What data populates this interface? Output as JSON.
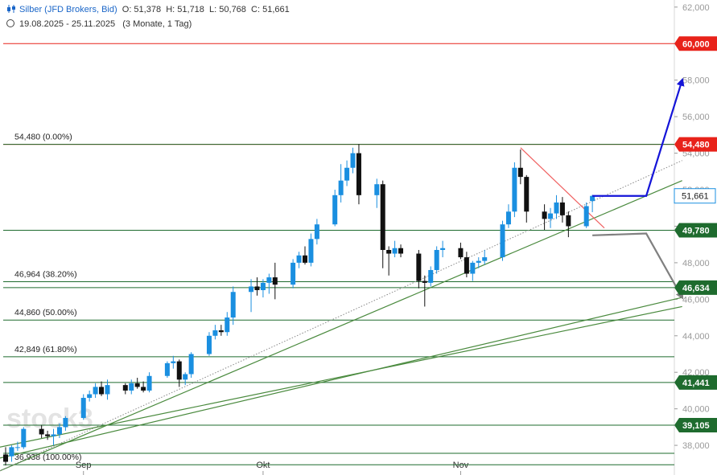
{
  "header": {
    "title": "Silber (JFD Brokers, Bid)",
    "open": "O: 51,378",
    "high": "H: 51,718",
    "low": "L: 50,768",
    "close": "C: 51,661",
    "range": "19.08.2025 - 25.11.2025",
    "interval": "(3 Monate, 1 Tag)"
  },
  "watermark": "stock3",
  "chart_data": {
    "type": "candlestick",
    "title": "Silber (JFD Brokers, Bid)",
    "y_ticks": [
      38,
      40,
      42,
      44,
      46,
      48,
      50,
      52,
      54,
      56,
      58,
      60,
      62
    ],
    "y_tick_labels": [
      "38,000",
      "40,000",
      "42,000",
      "44,000",
      "46,000",
      "48,000",
      "50,000",
      "52,000",
      "54,000",
      "56,000",
      "58,000",
      "60,000",
      "62,000"
    ],
    "ylim": [
      36.2,
      62.3
    ],
    "x_labels": [
      {
        "label": "Sep",
        "date": "2025-09-01"
      },
      {
        "label": "Okt",
        "date": "2025-10-01"
      },
      {
        "label": "Nov",
        "date": "2025-11-03"
      }
    ],
    "candles": [
      {
        "date": "2025-08-19",
        "o": 37.5,
        "h": 37.9,
        "l": 36.9,
        "c": 37.1
      },
      {
        "date": "2025-08-20",
        "o": 37.4,
        "h": 38.0,
        "l": 37.1,
        "c": 37.9
      },
      {
        "date": "2025-08-21",
        "o": 37.9,
        "h": 38.2,
        "l": 37.7,
        "c": 37.9
      },
      {
        "date": "2025-08-22",
        "o": 37.9,
        "h": 39.0,
        "l": 37.8,
        "c": 38.9
      },
      {
        "date": "2025-08-25",
        "o": 38.9,
        "h": 39.1,
        "l": 38.4,
        "c": 38.6
      },
      {
        "date": "2025-08-26",
        "o": 38.6,
        "h": 38.8,
        "l": 38.3,
        "c": 38.5
      },
      {
        "date": "2025-08-27",
        "o": 38.5,
        "h": 38.9,
        "l": 38.0,
        "c": 38.6
      },
      {
        "date": "2025-08-28",
        "o": 38.6,
        "h": 39.2,
        "l": 38.4,
        "c": 39.0
      },
      {
        "date": "2025-08-29",
        "o": 39.0,
        "h": 39.6,
        "l": 38.8,
        "c": 39.5
      },
      {
        "date": "2025-09-01",
        "o": 39.5,
        "h": 40.8,
        "l": 39.4,
        "c": 40.6
      },
      {
        "date": "2025-09-02",
        "o": 40.6,
        "h": 41.0,
        "l": 40.4,
        "c": 40.8
      },
      {
        "date": "2025-09-03",
        "o": 40.8,
        "h": 41.4,
        "l": 40.6,
        "c": 41.2
      },
      {
        "date": "2025-09-04",
        "o": 41.2,
        "h": 41.5,
        "l": 40.7,
        "c": 40.8
      },
      {
        "date": "2025-09-05",
        "o": 40.8,
        "h": 41.6,
        "l": 40.5,
        "c": 41.3
      },
      {
        "date": "2025-09-08",
        "o": 41.3,
        "h": 41.4,
        "l": 40.8,
        "c": 41.0
      },
      {
        "date": "2025-09-09",
        "o": 41.0,
        "h": 41.6,
        "l": 40.8,
        "c": 41.4
      },
      {
        "date": "2025-09-10",
        "o": 41.4,
        "h": 41.7,
        "l": 41.1,
        "c": 41.2
      },
      {
        "date": "2025-09-11",
        "o": 41.2,
        "h": 41.5,
        "l": 40.9,
        "c": 41.0
      },
      {
        "date": "2025-09-12",
        "o": 41.0,
        "h": 42.0,
        "l": 40.9,
        "c": 41.8
      },
      {
        "date": "2025-09-15",
        "o": 41.8,
        "h": 42.6,
        "l": 41.7,
        "c": 42.5
      },
      {
        "date": "2025-09-16",
        "o": 42.5,
        "h": 42.9,
        "l": 42.2,
        "c": 42.6
      },
      {
        "date": "2025-09-17",
        "o": 42.6,
        "h": 42.7,
        "l": 41.2,
        "c": 41.6
      },
      {
        "date": "2025-09-18",
        "o": 41.6,
        "h": 42.0,
        "l": 41.3,
        "c": 41.9
      },
      {
        "date": "2025-09-19",
        "o": 41.9,
        "h": 43.1,
        "l": 41.7,
        "c": 43.0
      },
      {
        "date": "2025-09-22",
        "o": 43.0,
        "h": 44.2,
        "l": 42.9,
        "c": 44.0
      },
      {
        "date": "2025-09-23",
        "o": 44.0,
        "h": 44.6,
        "l": 43.8,
        "c": 44.3
      },
      {
        "date": "2025-09-24",
        "o": 44.3,
        "h": 44.6,
        "l": 44.0,
        "c": 44.2
      },
      {
        "date": "2025-09-25",
        "o": 44.2,
        "h": 45.3,
        "l": 44.0,
        "c": 45.0
      },
      {
        "date": "2025-09-26",
        "o": 45.0,
        "h": 46.7,
        "l": 44.6,
        "c": 46.4
      },
      {
        "date": "2025-09-29",
        "o": 46.4,
        "h": 47.1,
        "l": 45.3,
        "c": 46.7
      },
      {
        "date": "2025-09-30",
        "o": 46.7,
        "h": 47.2,
        "l": 46.2,
        "c": 46.5
      },
      {
        "date": "2025-10-01",
        "o": 46.5,
        "h": 47.1,
        "l": 46.1,
        "c": 46.9
      },
      {
        "date": "2025-10-02",
        "o": 46.9,
        "h": 47.4,
        "l": 46.3,
        "c": 47.2
      },
      {
        "date": "2025-10-03",
        "o": 47.2,
        "h": 48.0,
        "l": 46.0,
        "c": 46.8
      },
      {
        "date": "2025-10-06",
        "o": 46.8,
        "h": 48.2,
        "l": 46.6,
        "c": 48.0
      },
      {
        "date": "2025-10-07",
        "o": 48.0,
        "h": 48.6,
        "l": 47.7,
        "c": 48.4
      },
      {
        "date": "2025-10-08",
        "o": 48.4,
        "h": 48.9,
        "l": 47.9,
        "c": 48.0
      },
      {
        "date": "2025-10-09",
        "o": 48.0,
        "h": 49.6,
        "l": 47.8,
        "c": 49.3
      },
      {
        "date": "2025-10-10",
        "o": 49.3,
        "h": 50.4,
        "l": 49.0,
        "c": 50.1
      },
      {
        "date": "2025-10-13",
        "o": 50.1,
        "h": 52.0,
        "l": 50.0,
        "c": 51.7
      },
      {
        "date": "2025-10-14",
        "o": 51.7,
        "h": 53.4,
        "l": 51.3,
        "c": 52.5
      },
      {
        "date": "2025-10-15",
        "o": 52.5,
        "h": 53.6,
        "l": 52.2,
        "c": 53.2
      },
      {
        "date": "2025-10-16",
        "o": 53.2,
        "h": 54.3,
        "l": 52.9,
        "c": 54.0
      },
      {
        "date": "2025-10-17",
        "o": 54.0,
        "h": 54.5,
        "l": 51.2,
        "c": 51.7
      },
      {
        "date": "2025-10-20",
        "o": 51.7,
        "h": 52.6,
        "l": 51.0,
        "c": 52.3
      },
      {
        "date": "2025-10-21",
        "o": 52.3,
        "h": 52.5,
        "l": 47.7,
        "c": 48.7
      },
      {
        "date": "2025-10-22",
        "o": 48.7,
        "h": 48.9,
        "l": 47.3,
        "c": 48.5
      },
      {
        "date": "2025-10-23",
        "o": 48.5,
        "h": 49.2,
        "l": 48.3,
        "c": 48.8
      },
      {
        "date": "2025-10-24",
        "o": 48.8,
        "h": 49.0,
        "l": 48.3,
        "c": 48.5
      },
      {
        "date": "2025-10-27",
        "o": 48.5,
        "h": 48.7,
        "l": 46.6,
        "c": 47.0
      },
      {
        "date": "2025-10-28",
        "o": 47.0,
        "h": 47.3,
        "l": 45.6,
        "c": 46.9
      },
      {
        "date": "2025-10-29",
        "o": 46.9,
        "h": 47.8,
        "l": 46.7,
        "c": 47.6
      },
      {
        "date": "2025-10-30",
        "o": 47.6,
        "h": 48.9,
        "l": 47.4,
        "c": 48.7
      },
      {
        "date": "2025-10-31",
        "o": 48.7,
        "h": 49.2,
        "l": 48.3,
        "c": 48.8
      },
      {
        "date": "2025-11-03",
        "o": 48.8,
        "h": 49.1,
        "l": 48.2,
        "c": 48.3
      },
      {
        "date": "2025-11-04",
        "o": 48.3,
        "h": 48.6,
        "l": 47.2,
        "c": 47.4
      },
      {
        "date": "2025-11-05",
        "o": 47.4,
        "h": 48.1,
        "l": 47.0,
        "c": 48.0
      },
      {
        "date": "2025-11-06",
        "o": 48.0,
        "h": 48.3,
        "l": 47.7,
        "c": 48.1
      },
      {
        "date": "2025-11-07",
        "o": 48.1,
        "h": 48.7,
        "l": 47.9,
        "c": 48.3
      },
      {
        "date": "2025-11-10",
        "o": 48.3,
        "h": 50.3,
        "l": 48.1,
        "c": 50.1
      },
      {
        "date": "2025-11-11",
        "o": 50.1,
        "h": 51.2,
        "l": 49.9,
        "c": 50.8
      },
      {
        "date": "2025-11-12",
        "o": 50.8,
        "h": 53.5,
        "l": 50.5,
        "c": 53.2
      },
      {
        "date": "2025-11-13",
        "o": 53.2,
        "h": 54.2,
        "l": 52.3,
        "c": 52.7
      },
      {
        "date": "2025-11-14",
        "o": 52.7,
        "h": 52.8,
        "l": 50.2,
        "c": 50.8
      },
      {
        "date": "2025-11-17",
        "o": 50.8,
        "h": 51.2,
        "l": 49.8,
        "c": 50.4
      },
      {
        "date": "2025-11-18",
        "o": 50.4,
        "h": 51.0,
        "l": 49.9,
        "c": 50.7
      },
      {
        "date": "2025-11-19",
        "o": 50.7,
        "h": 51.7,
        "l": 50.4,
        "c": 51.3
      },
      {
        "date": "2025-11-20",
        "o": 51.3,
        "h": 51.6,
        "l": 50.2,
        "c": 50.6
      },
      {
        "date": "2025-11-21",
        "o": 50.6,
        "h": 50.8,
        "l": 49.4,
        "c": 50.0
      },
      {
        "date": "2025-11-24",
        "o": 50.0,
        "h": 51.3,
        "l": 49.9,
        "c": 51.1
      },
      {
        "date": "2025-11-25",
        "o": 51.378,
        "h": 51.718,
        "l": 50.768,
        "c": 51.661
      }
    ],
    "horizontal_levels": [
      {
        "value": 60.0,
        "label": "60,000",
        "color": "#e8221a",
        "type": "badge"
      },
      {
        "value": 54.48,
        "label": "54,480",
        "color": "#e8221a",
        "type": "badge"
      },
      {
        "value": 51.661,
        "label": "51,661",
        "color": "#1a8fe0",
        "type": "price"
      },
      {
        "value": 49.78,
        "label": "49,780",
        "color": "#1e6b2e",
        "type": "badge"
      },
      {
        "value": 46.634,
        "label": "46,634",
        "color": "#1e6b2e",
        "type": "badge"
      },
      {
        "value": 41.441,
        "label": "41,441",
        "color": "#1e6b2e",
        "type": "badge"
      },
      {
        "value": 39.105,
        "label": "39,105",
        "color": "#1e6b2e",
        "type": "badge"
      }
    ],
    "fibonacci": [
      {
        "value": 54.48,
        "label": "54,480 (0.00%)"
      },
      {
        "value": 46.964,
        "label": "46,964 (38.20%)"
      },
      {
        "value": 44.86,
        "label": "44,860 (50.00%)"
      },
      {
        "value": 42.849,
        "label": "42,849 (61.80%)"
      },
      {
        "value": 36.938,
        "label": "36,938 (100.00%)"
      }
    ],
    "trendlines": [
      {
        "from": [
          "2025-08-18",
          36.6
        ],
        "to": [
          "2025-12-10",
          52.5
        ],
        "color": "#4a8a3e",
        "style": "solid"
      },
      {
        "from": [
          "2025-08-18",
          36.6
        ],
        "to": [
          "2025-12-10",
          53.6
        ],
        "color": "#888888",
        "style": "dotted"
      },
      {
        "from": [
          "2025-08-18",
          37.3
        ],
        "to": [
          "2025-12-10",
          46.1
        ],
        "color": "#4a8a3e",
        "style": "solid"
      },
      {
        "from": [
          "2025-08-18",
          37.9
        ],
        "to": [
          "2025-12-10",
          45.6
        ],
        "color": "#4a8a3e",
        "style": "solid"
      },
      {
        "from": [
          "2025-11-13",
          54.3
        ],
        "to": [
          "2025-11-27",
          49.9
        ],
        "color": "#f06060",
        "style": "solid"
      }
    ],
    "scenarios": [
      {
        "direction": "up",
        "color": "#1414d8",
        "points": [
          [
            "2025-11-25",
            51.66
          ],
          [
            "2025-12-04",
            51.66
          ],
          [
            "2025-12-10",
            58.0
          ]
        ]
      },
      {
        "direction": "down",
        "color": "#808080",
        "points": [
          [
            "2025-11-25",
            49.5
          ],
          [
            "2025-12-04",
            49.6
          ],
          [
            "2025-12-10",
            46.1
          ]
        ]
      }
    ]
  }
}
